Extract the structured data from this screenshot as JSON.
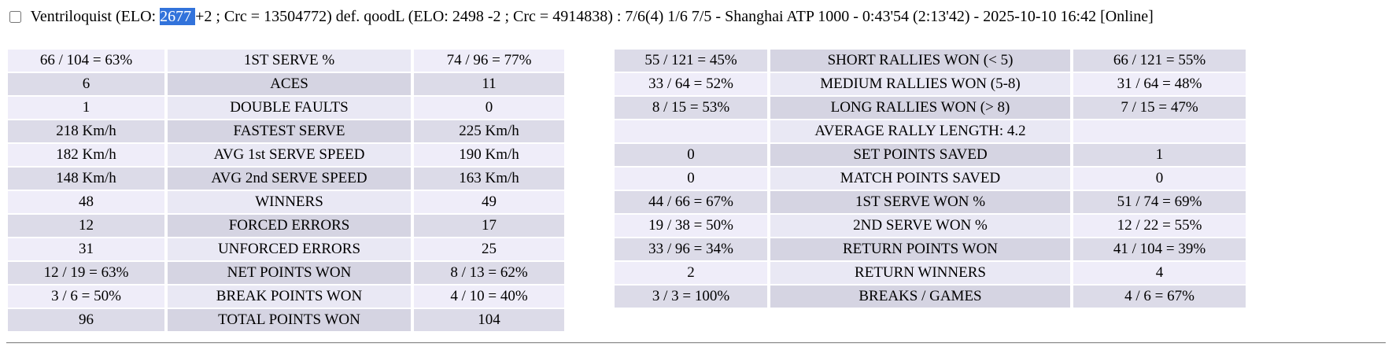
{
  "colors": {
    "selection_bg": "#3273DB",
    "row_light_side": "#EFEDF9",
    "row_light_center": "#E9E8F4",
    "row_dark_side": "#DCDBE8",
    "row_dark_center": "#D5D4E2"
  },
  "header": {
    "checkbox_checked": false,
    "pre_selection": "Ventriloquist (ELO: ",
    "selected_text": "2677 ",
    "post_selection": "+2 ; Crc = 13504772) def. qoodL (ELO: 2498 -2 ; Crc = 4914838) : 7/6(4) 1/6 7/5 - Shanghai ATP 1000 - 0:43'54 (2:13'42) - 2025-10-10 16:42 [Online]"
  },
  "serve_stats_table": {
    "first_row_shade": "light",
    "rows": [
      {
        "p1": "66 / 104 = 63%",
        "label": "1ST SERVE %",
        "p2": "74 / 96 = 77%"
      },
      {
        "p1": "6",
        "label": "ACES",
        "p2": "11"
      },
      {
        "p1": "1",
        "label": "DOUBLE FAULTS",
        "p2": "0"
      },
      {
        "p1": "218 Km/h",
        "label": "FASTEST SERVE",
        "p2": "225 Km/h"
      },
      {
        "p1": "182 Km/h",
        "label": "AVG 1st SERVE SPEED",
        "p2": "190 Km/h"
      },
      {
        "p1": "148 Km/h",
        "label": "AVG 2nd SERVE SPEED",
        "p2": "163 Km/h"
      },
      {
        "p1": "48",
        "label": "WINNERS",
        "p2": "49"
      },
      {
        "p1": "12",
        "label": "FORCED ERRORS",
        "p2": "17"
      },
      {
        "p1": "31",
        "label": "UNFORCED ERRORS",
        "p2": "25"
      },
      {
        "p1": "12 / 19 = 63%",
        "label": "NET POINTS WON",
        "p2": "8 / 13 = 62%"
      },
      {
        "p1": "3 / 6 = 50%",
        "label": "BREAK POINTS WON",
        "p2": "4 / 10 = 40%"
      },
      {
        "p1": "96",
        "label": "TOTAL POINTS WON",
        "p2": "104"
      }
    ]
  },
  "rally_stats_table": {
    "first_row_shade": "dark",
    "rows": [
      {
        "p1": "55 / 121 = 45%",
        "label": "SHORT RALLIES WON (< 5)",
        "p2": "66 / 121 = 55%"
      },
      {
        "p1": "33 / 64 = 52%",
        "label": "MEDIUM RALLIES WON (5-8)",
        "p2": "31 / 64 = 48%"
      },
      {
        "p1": "8 / 15 = 53%",
        "label": "LONG RALLIES WON (> 8)",
        "p2": "7 / 15 = 47%"
      },
      {
        "p1": "",
        "label": "AVERAGE RALLY LENGTH: 4.2",
        "p2": ""
      },
      {
        "p1": "0",
        "label": "SET POINTS SAVED",
        "p2": "1"
      },
      {
        "p1": "0",
        "label": "MATCH POINTS SAVED",
        "p2": "0"
      },
      {
        "p1": "44 / 66 = 67%",
        "label": "1ST SERVE WON %",
        "p2": "51 / 74 = 69%"
      },
      {
        "p1": "19 / 38 = 50%",
        "label": "2ND SERVE WON %",
        "p2": "12 / 22 = 55%"
      },
      {
        "p1": "33 / 96 = 34%",
        "label": "RETURN POINTS WON",
        "p2": "41 / 104 = 39%"
      },
      {
        "p1": "2",
        "label": "RETURN WINNERS",
        "p2": "4"
      },
      {
        "p1": "3 / 3 = 100%",
        "label": "BREAKS / GAMES",
        "p2": "4 / 6 = 67%"
      }
    ]
  }
}
